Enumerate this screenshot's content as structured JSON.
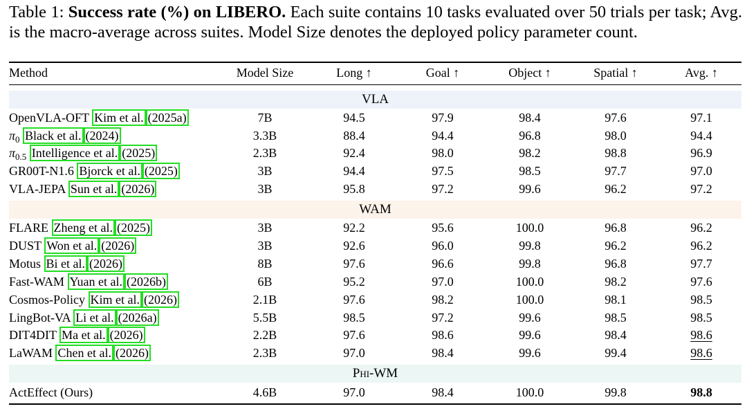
{
  "caption": {
    "label": "Table 1:",
    "bold": "Success rate (%) on LIBERO.",
    "text": "Each suite contains 10 tasks evaluated over 50 trials per task; Avg. is the macro-average across suites. Model Size denotes the deployed policy parameter count."
  },
  "headers": {
    "method": "Method",
    "size": "Model Size",
    "long": "Long ↑",
    "goal": "Goal ↑",
    "object": "Object ↑",
    "spatial": "Spatial ↑",
    "avg": "Avg. ↑"
  },
  "sections": {
    "vla": "VLA",
    "wam": "WAM",
    "phi": "Phi-WM"
  },
  "colors": {
    "vla_band": "#eef3fa",
    "wam_band": "#fcf3ea",
    "phi_band": "#ecf6f4",
    "citation_box": "#22dd22"
  },
  "rows": [
    {
      "name": "OpenVLA-OFT",
      "author": "Kim et al.",
      "year": "2025a",
      "size": "7B",
      "long": "94.5",
      "goal": "97.9",
      "object": "98.4",
      "spatial": "97.6",
      "avg": "97.1"
    },
    {
      "name": "π",
      "sub": "0",
      "author": "Black et al.",
      "year": "2024",
      "size": "3.3B",
      "long": "88.4",
      "goal": "94.4",
      "object": "96.8",
      "spatial": "98.0",
      "avg": "94.4"
    },
    {
      "name": "π",
      "sub": "0.5",
      "author": "Intelligence et al.",
      "year": "2025",
      "size": "2.3B",
      "long": "92.4",
      "goal": "98.0",
      "object": "98.2",
      "spatial": "98.8",
      "avg": "96.9"
    },
    {
      "name": "GR00T-N1.6",
      "author": "Bjorck et al.",
      "year": "2025",
      "size": "3B",
      "long": "94.4",
      "goal": "97.5",
      "object": "98.5",
      "spatial": "97.7",
      "avg": "97.0"
    },
    {
      "name": "VLA-JEPA",
      "author": "Sun et al.",
      "year": "2026",
      "size": "3B",
      "long": "95.8",
      "goal": "97.2",
      "object": "99.6",
      "spatial": "96.2",
      "avg": "97.2"
    },
    {
      "name": "FLARE",
      "author": "Zheng et al.",
      "year": "2025",
      "size": "3B",
      "long": "92.2",
      "goal": "95.6",
      "object": "100.0",
      "spatial": "96.8",
      "avg": "96.2"
    },
    {
      "name": "DUST",
      "author": "Won et al.",
      "year": "2026",
      "size": "3B",
      "long": "92.6",
      "goal": "96.0",
      "object": "99.8",
      "spatial": "96.2",
      "avg": "96.2"
    },
    {
      "name": "Motus",
      "author": "Bi et al.",
      "year": "2026",
      "size": "8B",
      "long": "97.6",
      "goal": "96.6",
      "object": "99.8",
      "spatial": "96.8",
      "avg": "97.7"
    },
    {
      "name": "Fast-WAM",
      "author": "Yuan et al.",
      "year": "2026b",
      "size": "6B",
      "long": "95.2",
      "goal": "97.0",
      "object": "100.0",
      "spatial": "98.2",
      "avg": "97.6"
    },
    {
      "name": "Cosmos-Policy",
      "author": "Kim et al.",
      "year": "2026",
      "size": "2.1B",
      "long": "97.6",
      "goal": "98.2",
      "object": "100.0",
      "spatial": "98.1",
      "avg": "98.5"
    },
    {
      "name": "LingBot-VA",
      "author": "Li et al.",
      "year": "2026a",
      "size": "5.5B",
      "long": "98.5",
      "goal": "97.2",
      "object": "99.6",
      "spatial": "98.5",
      "avg": "98.5"
    },
    {
      "name": "DIT4DIT",
      "author": "Ma et al.",
      "year": "2026",
      "size": "2.2B",
      "long": "97.6",
      "goal": "98.6",
      "object": "99.6",
      "spatial": "98.4",
      "avg": "98.6"
    },
    {
      "name": "LaWAM",
      "author": "Chen et al.",
      "year": "2026",
      "size": "2.3B",
      "long": "97.0",
      "goal": "98.4",
      "object": "99.6",
      "spatial": "99.4",
      "avg": "98.6"
    },
    {
      "name": "ActEffect (Ours)",
      "size": "4.6B",
      "long": "97.0",
      "goal": "98.4",
      "object": "100.0",
      "spatial": "99.8",
      "avg": "98.8"
    }
  ]
}
